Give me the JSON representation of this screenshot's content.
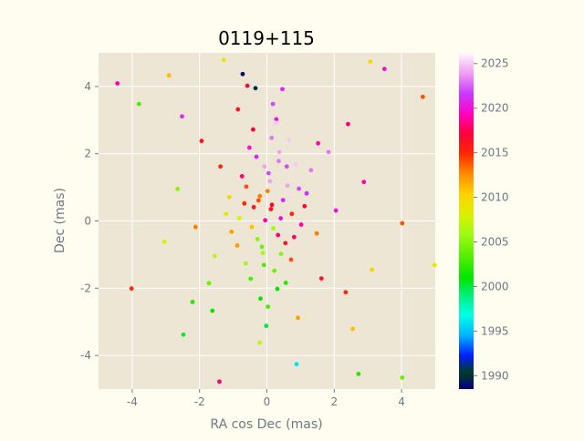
{
  "chart_data": {
    "type": "scatter",
    "title": "0119+115",
    "xlabel": "RA cos Dec (mas)",
    "ylabel": "Dec (mas)",
    "xlim": [
      -5.0,
      5.0
    ],
    "ylim": [
      -5.0,
      5.0
    ],
    "x_ticks": [
      -4,
      -2,
      0,
      2,
      4
    ],
    "y_ticks": [
      -4,
      -2,
      0,
      2,
      4
    ],
    "grid": true,
    "background": "#ede6d4",
    "colorbar": {
      "label": "",
      "range": [
        1988.5,
        2026.2
      ],
      "ticks": [
        1990,
        1995,
        2000,
        2005,
        2010,
        2015,
        2020,
        2025
      ],
      "colormap": "gist_ncar"
    },
    "points": [
      {
        "x": 0.12,
        "y": 0.35,
        "year": 2016
      },
      {
        "x": -0.21,
        "y": 0.74,
        "year": 2013
      },
      {
        "x": 0.33,
        "y": -0.42,
        "year": 2018
      },
      {
        "x": -0.45,
        "y": -0.18,
        "year": 2011
      },
      {
        "x": 0.05,
        "y": 1.42,
        "year": 2022
      },
      {
        "x": 0.61,
        "y": 1.05,
        "year": 2024
      },
      {
        "x": -0.12,
        "y": -0.95,
        "year": 2006
      },
      {
        "x": 0.41,
        "y": 0.08,
        "year": 2020
      },
      {
        "x": -0.67,
        "y": 0.52,
        "year": 2015
      },
      {
        "x": 0.22,
        "y": -1.48,
        "year": 2004
      },
      {
        "x": 0.85,
        "y": 1.68,
        "year": 2025
      },
      {
        "x": -0.31,
        "y": 1.91,
        "year": 2021
      },
      {
        "x": 0.14,
        "y": 2.47,
        "year": 2023
      },
      {
        "x": -0.88,
        "y": -0.73,
        "year": 2012
      },
      {
        "x": 0.55,
        "y": -0.66,
        "year": 2016
      },
      {
        "x": -0.05,
        "y": 0.02,
        "year": 2019
      },
      {
        "x": 1.12,
        "y": 0.44,
        "year": 2017
      },
      {
        "x": -1.21,
        "y": 0.21,
        "year": 2009
      },
      {
        "x": 0.37,
        "y": 2.05,
        "year": 2024
      },
      {
        "x": -0.48,
        "y": -1.72,
        "year": 2003
      },
      {
        "x": 0.72,
        "y": -1.15,
        "year": 2014
      },
      {
        "x": -0.19,
        "y": -2.31,
        "year": 2001
      },
      {
        "x": 0.95,
        "y": 0.96,
        "year": 2022
      },
      {
        "x": -0.74,
        "y": 1.33,
        "year": 2018
      },
      {
        "x": 0.28,
        "y": 3.02,
        "year": 2020
      },
      {
        "x": -1.55,
        "y": -1.04,
        "year": 2007
      },
      {
        "x": 1.48,
        "y": -0.37,
        "year": 2013
      },
      {
        "x": -0.02,
        "y": -3.12,
        "year": 2000
      },
      {
        "x": 1.83,
        "y": 2.05,
        "year": 2023
      },
      {
        "x": -1.94,
        "y": 2.38,
        "year": 2016
      },
      {
        "x": 2.34,
        "y": -2.12,
        "year": 2015
      },
      {
        "x": -2.21,
        "y": -2.41,
        "year": 2002
      },
      {
        "x": 0.46,
        "y": 3.92,
        "year": 2021
      },
      {
        "x": -0.58,
        "y": 4.02,
        "year": 2017
      },
      {
        "x": 2.88,
        "y": 1.16,
        "year": 2019
      },
      {
        "x": -2.65,
        "y": 0.95,
        "year": 2005
      },
      {
        "x": 3.12,
        "y": -1.45,
        "year": 2010
      },
      {
        "x": -3.04,
        "y": -0.62,
        "year": 2008
      },
      {
        "x": 4.63,
        "y": 3.69,
        "year": 2014
      },
      {
        "x": -4.02,
        "y": -2.01,
        "year": 2015
      },
      {
        "x": 4.02,
        "y": -0.07,
        "year": 2014
      },
      {
        "x": -4.44,
        "y": 4.09,
        "year": 2019
      },
      {
        "x": 3.49,
        "y": 4.52,
        "year": 2020
      },
      {
        "x": 3.07,
        "y": 4.74,
        "year": 2010
      },
      {
        "x": -2.91,
        "y": 4.33,
        "year": 2011
      },
      {
        "x": -3.8,
        "y": 3.48,
        "year": 2003
      },
      {
        "x": 4.98,
        "y": -1.31,
        "year": 2009
      },
      {
        "x": 4.02,
        "y": -4.66,
        "year": 2004
      },
      {
        "x": 2.72,
        "y": -4.55,
        "year": 2002
      },
      {
        "x": -1.41,
        "y": -4.78,
        "year": 2018
      },
      {
        "x": -0.72,
        "y": 4.37,
        "year": 1989
      },
      {
        "x": -0.34,
        "y": 3.95,
        "year": 1990
      },
      {
        "x": 0.88,
        "y": -4.26,
        "year": 1996
      },
      {
        "x": -1.28,
        "y": 4.79,
        "year": 2009
      },
      {
        "x": 0.59,
        "y": 1.62,
        "year": 2022
      },
      {
        "x": 0.02,
        "y": 0.89,
        "year": 2013
      },
      {
        "x": -0.39,
        "y": 0.41,
        "year": 2016
      },
      {
        "x": 0.19,
        "y": -0.22,
        "year": 2006
      },
      {
        "x": 0.48,
        "y": 0.62,
        "year": 2021
      },
      {
        "x": -0.28,
        "y": -0.54,
        "year": 2005
      },
      {
        "x": 0.09,
        "y": 1.18,
        "year": 2024
      },
      {
        "x": -0.09,
        "y": -1.31,
        "year": 2003
      },
      {
        "x": 0.66,
        "y": 2.41,
        "year": 2025
      },
      {
        "x": -0.61,
        "y": 1.02,
        "year": 2014
      },
      {
        "x": 1.02,
        "y": -0.11,
        "year": 2019
      },
      {
        "x": -1.05,
        "y": -0.32,
        "year": 2012
      },
      {
        "x": 0.31,
        "y": -2.02,
        "year": 2001
      },
      {
        "x": -0.41,
        "y": 2.72,
        "year": 2017
      },
      {
        "x": 1.31,
        "y": 1.51,
        "year": 2023
      },
      {
        "x": -1.38,
        "y": 1.62,
        "year": 2015
      },
      {
        "x": 1.62,
        "y": -1.71,
        "year": 2016
      },
      {
        "x": -1.72,
        "y": -1.85,
        "year": 2004
      },
      {
        "x": 2.05,
        "y": 0.31,
        "year": 2020
      },
      {
        "x": -2.12,
        "y": -0.18,
        "year": 2013
      },
      {
        "x": 0.18,
        "y": 3.48,
        "year": 2022
      },
      {
        "x": -0.21,
        "y": -3.62,
        "year": 2007
      },
      {
        "x": 2.41,
        "y": 2.88,
        "year": 2018
      },
      {
        "x": -2.52,
        "y": 3.11,
        "year": 2021
      },
      {
        "x": 2.55,
        "y": -3.21,
        "year": 2011
      },
      {
        "x": -2.48,
        "y": -3.38,
        "year": 2000
      },
      {
        "x": 0.74,
        "y": 0.21,
        "year": 2015
      },
      {
        "x": -0.82,
        "y": 0.08,
        "year": 2008
      },
      {
        "x": 0.35,
        "y": 1.78,
        "year": 2023
      },
      {
        "x": -0.15,
        "y": -0.77,
        "year": 2004
      },
      {
        "x": 0.81,
        "y": -0.48,
        "year": 2018
      },
      {
        "x": -0.52,
        "y": 2.18,
        "year": 2020
      },
      {
        "x": 0.42,
        "y": -0.98,
        "year": 2005
      },
      {
        "x": -0.25,
        "y": 0.61,
        "year": 2014
      },
      {
        "x": 0.15,
        "y": 0.48,
        "year": 2017
      },
      {
        "x": -0.07,
        "y": 1.62,
        "year": 2024
      },
      {
        "x": 1.18,
        "y": 0.82,
        "year": 2021
      },
      {
        "x": -1.12,
        "y": 0.71,
        "year": 2010
      },
      {
        "x": 0.56,
        "y": -1.84,
        "year": 2002
      },
      {
        "x": -0.63,
        "y": -1.26,
        "year": 2006
      },
      {
        "x": 1.52,
        "y": 2.31,
        "year": 2019
      },
      {
        "x": -1.62,
        "y": -2.67,
        "year": 2001
      },
      {
        "x": 0.03,
        "y": -2.55,
        "year": 2003
      },
      {
        "x": 0.27,
        "y": 2.92,
        "year": 2025
      },
      {
        "x": -0.86,
        "y": 3.32,
        "year": 2016
      },
      {
        "x": 0.92,
        "y": -2.88,
        "year": 2012
      }
    ]
  }
}
